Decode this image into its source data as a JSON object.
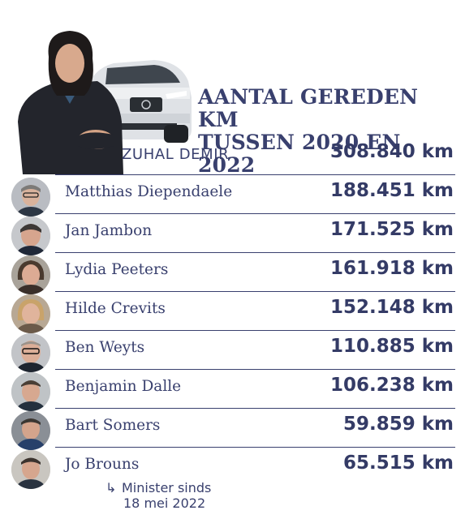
{
  "title_line1": "AANTAL GEREDEN KM",
  "title_line2": "TUSSEN 2020 EN 2022",
  "footnote": {
    "arrow": "↳",
    "line1": "Minister sinds",
    "line2": "18 mei 2022"
  },
  "chart_data": {
    "type": "table",
    "title": "AANTAL GEREDEN KM TUSSEN 2020 EN 2022",
    "unit": "km",
    "rows": [
      {
        "name": "ZUHAL DEMIR",
        "value_label": "308.840 km",
        "value": 308840
      },
      {
        "name": "Matthias Diependaele",
        "value_label": "188.451 km",
        "value": 188451
      },
      {
        "name": "Jan Jambon",
        "value_label": "171.525 km",
        "value": 171525
      },
      {
        "name": "Lydia Peeters",
        "value_label": "161.918 km",
        "value": 161918
      },
      {
        "name": "Hilde Crevits",
        "value_label": "152.148 km",
        "value": 152148
      },
      {
        "name": "Ben Weyts",
        "value_label": "110.885 km",
        "value": 110885
      },
      {
        "name": "Benjamin Dalle",
        "value_label": "106.238 km",
        "value": 106238
      },
      {
        "name": "Bart Somers",
        "value_label": "59.859 km",
        "value": 59859
      },
      {
        "name": "Jo Brouns",
        "value_label": "65.515 km",
        "value": 65515
      }
    ]
  },
  "colors": {
    "text": "#39406e",
    "divider": "#39406e"
  }
}
